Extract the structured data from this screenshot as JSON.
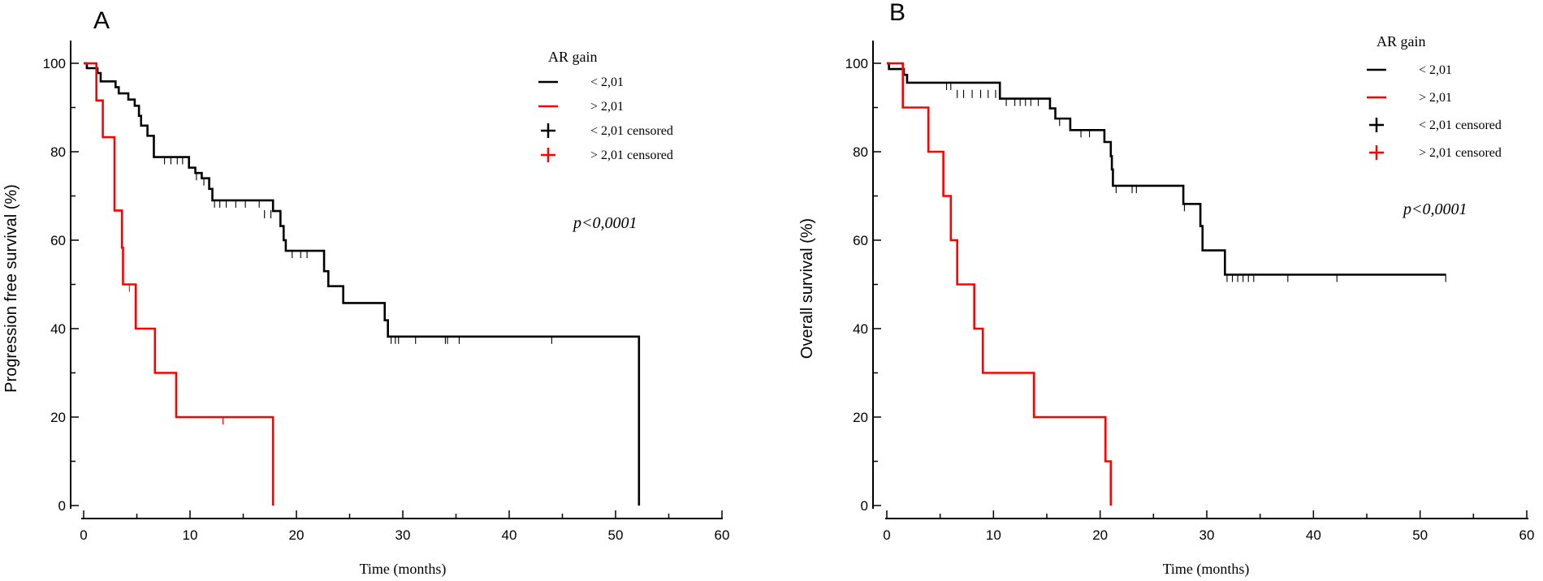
{
  "chart_data": [
    {
      "type": "line",
      "subtype": "kaplan-meier",
      "panel_label": "A",
      "xlabel": "Time (months)",
      "ylabel": "Progression free survival (%)",
      "xlim": [
        0,
        60
      ],
      "ylim": [
        0,
        100
      ],
      "xticks": [
        0,
        10,
        20,
        30,
        40,
        50,
        60
      ],
      "yticks": [
        0,
        20,
        40,
        60,
        80,
        100
      ],
      "legend": {
        "title": "AR gain",
        "entries": [
          {
            "label": "< 2,01",
            "color": "#000000",
            "marker": "line"
          },
          {
            "label": "> 2,01",
            "color": "#ff0000",
            "marker": "line"
          },
          {
            "label": "< 2,01 censored",
            "color": "#000000",
            "marker": "plus"
          },
          {
            "label": "> 2,01 censored",
            "color": "#ff0000",
            "marker": "plus"
          }
        ]
      },
      "annotation": "p<0,0001",
      "series": [
        {
          "name": "< 2,01",
          "color": "#000000",
          "steps": [
            [
              0,
              100
            ],
            [
              0.3,
              98.9
            ],
            [
              1.3,
              97.8
            ],
            [
              1.6,
              95.9
            ],
            [
              3.0,
              94.6
            ],
            [
              3.3,
              93.2
            ],
            [
              4.2,
              91.8
            ],
            [
              4.8,
              90.4
            ],
            [
              5.2,
              88.1
            ],
            [
              5.4,
              85.9
            ],
            [
              6.0,
              83.6
            ],
            [
              6.6,
              78.8
            ],
            [
              9.9,
              76.4
            ],
            [
              10.5,
              75.2
            ],
            [
              11.1,
              74.0
            ],
            [
              11.8,
              71.6
            ],
            [
              12.1,
              69.0
            ],
            [
              17.8,
              66.6
            ],
            [
              18.5,
              63.2
            ],
            [
              18.8,
              60.0
            ],
            [
              19.0,
              57.6
            ],
            [
              22.6,
              53.0
            ],
            [
              23.0,
              49.6
            ],
            [
              24.4,
              45.8
            ],
            [
              28.3,
              41.9
            ],
            [
              28.6,
              38.2
            ],
            [
              52.2,
              0
            ]
          ],
          "censored": [
            [
              7.6,
              78.8
            ],
            [
              8.2,
              78.8
            ],
            [
              8.8,
              78.8
            ],
            [
              9.3,
              78.8
            ],
            [
              10.6,
              75.2
            ],
            [
              11.3,
              74.0
            ],
            [
              12.3,
              69.0
            ],
            [
              12.8,
              69.0
            ],
            [
              13.4,
              69.0
            ],
            [
              14.3,
              69.0
            ],
            [
              15.2,
              69.0
            ],
            [
              16.5,
              69.0
            ],
            [
              17.0,
              66.6
            ],
            [
              17.6,
              66.6
            ],
            [
              19.6,
              57.6
            ],
            [
              20.4,
              57.6
            ],
            [
              21.0,
              57.6
            ],
            [
              28.9,
              38.2
            ],
            [
              29.3,
              38.2
            ],
            [
              29.6,
              38.2
            ],
            [
              31.2,
              38.2
            ],
            [
              34.0,
              38.2
            ],
            [
              34.2,
              38.2
            ],
            [
              35.3,
              38.2
            ],
            [
              44.0,
              38.2
            ]
          ]
        },
        {
          "name": "> 2,01",
          "color": "#ff0000",
          "steps": [
            [
              0,
              100
            ],
            [
              1.2,
              91.6
            ],
            [
              1.8,
              83.3
            ],
            [
              2.9,
              66.7
            ],
            [
              3.6,
              58.3
            ],
            [
              3.7,
              50.0
            ],
            [
              4.9,
              40.0
            ],
            [
              6.7,
              30.0
            ],
            [
              8.7,
              20.0
            ],
            [
              17.8,
              0
            ]
          ],
          "censored": [
            [
              4.3,
              50.0
            ],
            [
              13.1,
              20.0
            ]
          ]
        }
      ]
    },
    {
      "type": "line",
      "subtype": "kaplan-meier",
      "panel_label": "B",
      "xlabel": "Time (months)",
      "ylabel": "Overall survival (%)",
      "xlim": [
        0,
        60
      ],
      "ylim": [
        0,
        100
      ],
      "xticks": [
        0,
        10,
        20,
        30,
        40,
        50,
        60
      ],
      "yticks": [
        0,
        20,
        40,
        60,
        80,
        100
      ],
      "legend": {
        "title": "AR gain",
        "entries": [
          {
            "label": "< 2,01",
            "color": "#000000",
            "marker": "line"
          },
          {
            "label": "> 2,01",
            "color": "#ff0000",
            "marker": "line"
          },
          {
            "label": "< 2,01 censored",
            "color": "#000000",
            "marker": "plus"
          },
          {
            "label": "> 2,01 censored",
            "color": "#ff0000",
            "marker": "plus"
          }
        ]
      },
      "annotation": "p<0,0001",
      "series": [
        {
          "name": "< 2,01",
          "color": "#000000",
          "steps": [
            [
              0,
              100
            ],
            [
              0.2,
              98.7
            ],
            [
              1.6,
              97.4
            ],
            [
              1.9,
              95.6
            ],
            [
              10.6,
              92.0
            ],
            [
              15.3,
              89.8
            ],
            [
              15.8,
              87.5
            ],
            [
              17.2,
              84.9
            ],
            [
              20.4,
              82.2
            ],
            [
              21.0,
              79.0
            ],
            [
              21.1,
              76.0
            ],
            [
              21.2,
              72.3
            ],
            [
              27.8,
              68.2
            ],
            [
              29.4,
              63.2
            ],
            [
              29.6,
              57.7
            ],
            [
              31.7,
              52.2
            ]
          ],
          "censored": [
            [
              5.6,
              95.6
            ],
            [
              6.0,
              95.6
            ],
            [
              6.6,
              93.8
            ],
            [
              7.2,
              93.8
            ],
            [
              8.0,
              93.8
            ],
            [
              8.8,
              93.8
            ],
            [
              9.5,
              93.8
            ],
            [
              10.2,
              93.8
            ],
            [
              11.2,
              92.0
            ],
            [
              12.0,
              92.0
            ],
            [
              12.5,
              92.0
            ],
            [
              13.0,
              92.0
            ],
            [
              13.5,
              92.0
            ],
            [
              14.2,
              92.0
            ],
            [
              16.2,
              87.5
            ],
            [
              18.2,
              84.9
            ],
            [
              19.0,
              84.9
            ],
            [
              21.5,
              72.3
            ],
            [
              23.0,
              72.3
            ],
            [
              23.4,
              72.3
            ],
            [
              27.9,
              68.2
            ],
            [
              31.9,
              52.2
            ],
            [
              32.4,
              52.2
            ],
            [
              32.9,
              52.2
            ],
            [
              33.4,
              52.2
            ],
            [
              33.9,
              52.2
            ],
            [
              34.4,
              52.2
            ],
            [
              37.6,
              52.2
            ],
            [
              42.2,
              52.2
            ],
            [
              52.4,
              52.2
            ]
          ]
        },
        {
          "name": "> 2,01",
          "color": "#ff0000",
          "steps": [
            [
              0,
              100
            ],
            [
              1.5,
              90.0
            ],
            [
              3.9,
              80.0
            ],
            [
              5.3,
              70.0
            ],
            [
              6.0,
              60.0
            ],
            [
              6.6,
              50.0
            ],
            [
              8.2,
              40.0
            ],
            [
              9.0,
              30.0
            ],
            [
              13.8,
              20.0
            ],
            [
              20.5,
              10.0
            ],
            [
              21.0,
              0
            ]
          ],
          "censored": []
        }
      ]
    }
  ]
}
